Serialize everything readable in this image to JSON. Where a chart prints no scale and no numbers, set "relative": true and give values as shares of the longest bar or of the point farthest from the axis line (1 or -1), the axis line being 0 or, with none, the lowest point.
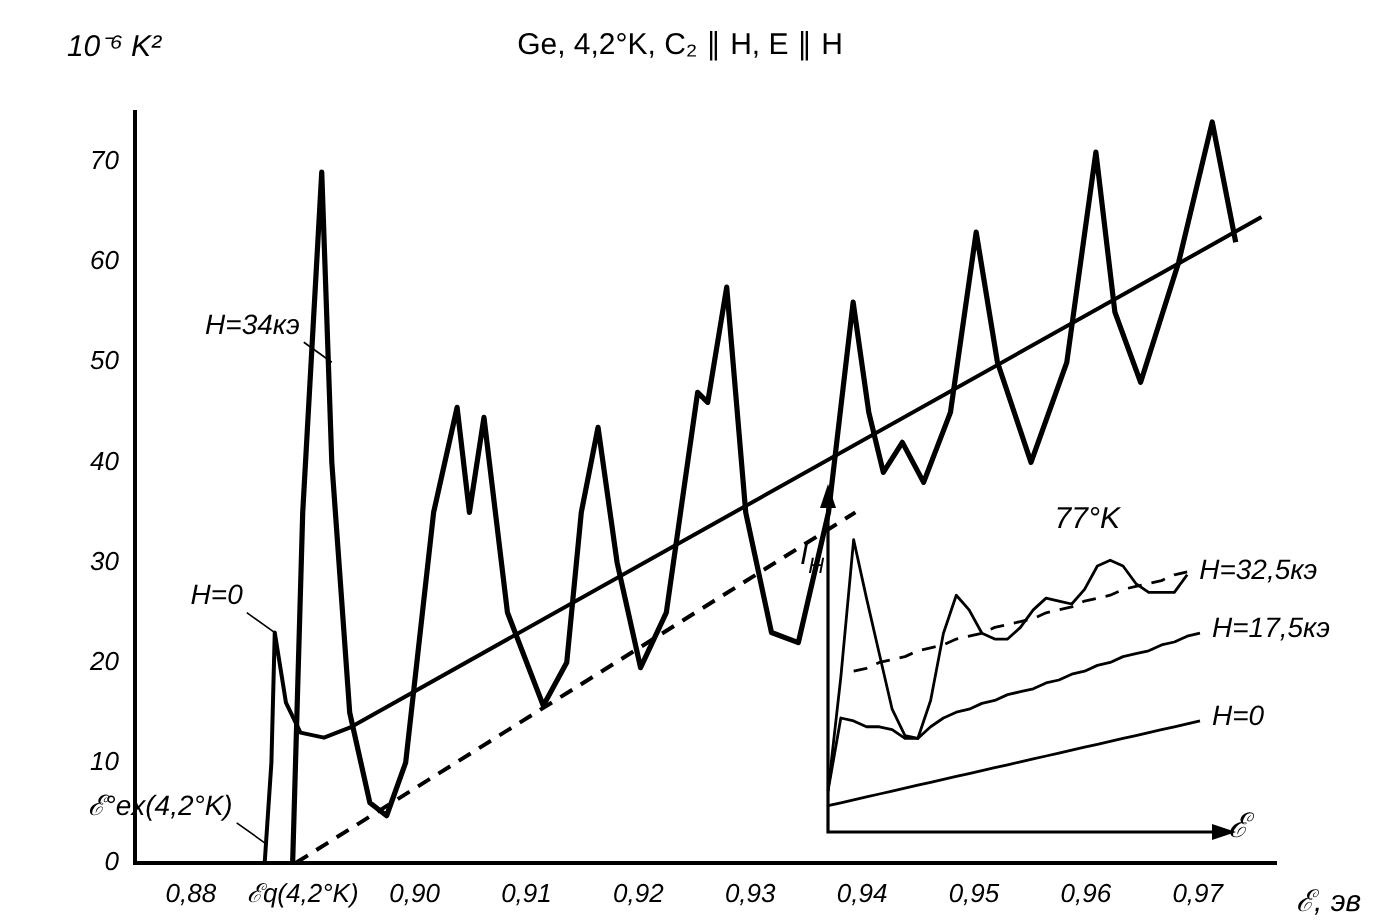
{
  "chart_data": [
    {
      "type": "line",
      "title": "Ge, 4,2°K, C₂ ∥ H, E ∥ H",
      "xlabel": "ℰ, эв",
      "ylabel": "10⁻⁶ K²",
      "xlim": [
        0.875,
        0.977
      ],
      "ylim": [
        0,
        75
      ],
      "xticks": [
        {
          "value": 0.88,
          "label": "0,88"
        },
        {
          "value": 0.89,
          "label": "ℰq(4,2°K)"
        },
        {
          "value": 0.9,
          "label": "0,90"
        },
        {
          "value": 0.91,
          "label": "0,91"
        },
        {
          "value": 0.92,
          "label": "0,92"
        },
        {
          "value": 0.93,
          "label": "0,93"
        },
        {
          "value": 0.94,
          "label": "0,94"
        },
        {
          "value": 0.95,
          "label": "0,95"
        },
        {
          "value": 0.96,
          "label": "0,96"
        },
        {
          "value": 0.97,
          "label": "0,97"
        }
      ],
      "yticks": [
        0,
        10,
        20,
        30,
        40,
        50,
        60,
        70
      ],
      "grid": false,
      "legend": false,
      "marker": "none",
      "series": [
        {
          "color": "#000000",
          "x": [
            0.8891,
            0.89,
            0.8917,
            0.8926,
            0.8942,
            0.896,
            0.8975,
            0.8992,
            0.9017,
            0.9038,
            0.9049,
            0.9062,
            0.9083,
            0.9115,
            0.9136,
            0.9149,
            0.9164,
            0.9181,
            0.9202,
            0.9225,
            0.9253,
            0.9262,
            0.9279,
            0.9296,
            0.9319,
            0.9343,
            0.937,
            0.9392,
            0.9406,
            0.9419,
            0.9436,
            0.9455,
            0.9479,
            0.9502,
            0.9521,
            0.9551,
            0.9583,
            0.9609,
            0.9626,
            0.9649,
            0.9683,
            0.9713,
            0.9734
          ],
          "values": [
            0,
            35,
            69,
            40,
            15,
            6,
            4.7,
            10,
            35,
            45.5,
            35,
            44.5,
            25,
            15.7,
            20,
            35,
            43.5,
            30,
            19.5,
            25,
            47,
            46,
            57.5,
            35,
            23,
            22,
            35,
            56,
            45,
            39,
            42,
            38,
            45,
            63,
            50,
            40,
            50,
            71,
            55,
            48,
            60,
            74,
            62
          ]
        },
        {
          "color": "#000000",
          "x": [
            0.8866,
            0.8872,
            0.8875,
            0.8885,
            0.8898,
            0.8919,
            0.8942,
            0.9757
          ],
          "values": [
            0,
            10,
            23,
            16,
            13,
            12.5,
            13.5,
            64.5
          ]
        },
        {
          "color": "#000000",
          "line_style": "dashed",
          "x": [
            0.8894,
            0.9394
          ],
          "values": [
            0,
            35
          ]
        }
      ],
      "annotations": [
        {
          "text": "H=34кэ",
          "x": 0.8926,
          "y": 50
        },
        {
          "text": "H=0",
          "x": 0.8875,
          "y": 23
        },
        {
          "text": "ℰ°ex(4,2°K)",
          "x": 0.8866,
          "y": 2
        }
      ]
    },
    {
      "type": "line",
      "relative": true,
      "ylabel": "I$_{H}$",
      "xlabel": "ℰ",
      "grid": false,
      "legend": false,
      "marker": "none",
      "annotations": [
        "77°K"
      ],
      "categories": [
        null,
        null,
        null,
        null,
        null,
        null,
        null,
        null,
        null,
        null,
        null,
        null,
        null,
        null,
        null,
        null,
        null,
        null,
        null,
        null,
        null,
        null,
        null,
        null,
        null,
        null,
        null,
        null,
        null,
        null
      ],
      "series": [
        {
          "name": "H=32,5кэ",
          "color": "#000000",
          "values": [
            0.14,
            0.53,
            1,
            0.8,
            0.61,
            0.42,
            0.33,
            0.32,
            0.45,
            0.68,
            0.81,
            0.76,
            0.68,
            0.66,
            0.66,
            0.7,
            0.76,
            0.8,
            0.79,
            0.78,
            0.83,
            0.91,
            0.93,
            0.91,
            0.85,
            0.82,
            0.82,
            0.82,
            0.88,
            null
          ]
        },
        {
          "color": "#000000",
          "line_style": "dashed",
          "values": [
            null,
            null,
            0.55,
            0.56,
            0.58,
            0.59,
            0.6,
            0.62,
            0.63,
            0.64,
            0.66,
            0.67,
            0.68,
            0.7,
            0.71,
            0.72,
            0.73,
            0.75,
            0.76,
            0.77,
            0.79,
            0.8,
            0.81,
            0.83,
            0.84,
            0.85,
            0.86,
            0.88,
            0.89,
            null
          ]
        },
        {
          "name": "H=17,5кэ",
          "color": "#000000",
          "values": [
            0.14,
            0.39,
            0.38,
            0.36,
            0.36,
            0.35,
            0.32,
            0.32,
            0.36,
            0.39,
            0.41,
            0.42,
            0.44,
            0.45,
            0.47,
            0.48,
            0.49,
            0.51,
            0.52,
            0.54,
            0.55,
            0.57,
            0.58,
            0.6,
            0.61,
            0.62,
            0.64,
            0.65,
            0.67,
            0.68
          ]
        },
        {
          "name": "H=0",
          "color": "#000000",
          "values": [
            0.09,
            0.1,
            0.11,
            0.12,
            0.13,
            0.14,
            0.15,
            0.16,
            0.17,
            0.18,
            0.19,
            0.2,
            0.21,
            0.22,
            0.23,
            0.24,
            0.25,
            0.26,
            0.27,
            0.28,
            0.29,
            0.3,
            0.31,
            0.32,
            0.33,
            0.34,
            0.35,
            0.36,
            0.37,
            0.38
          ]
        }
      ]
    }
  ]
}
